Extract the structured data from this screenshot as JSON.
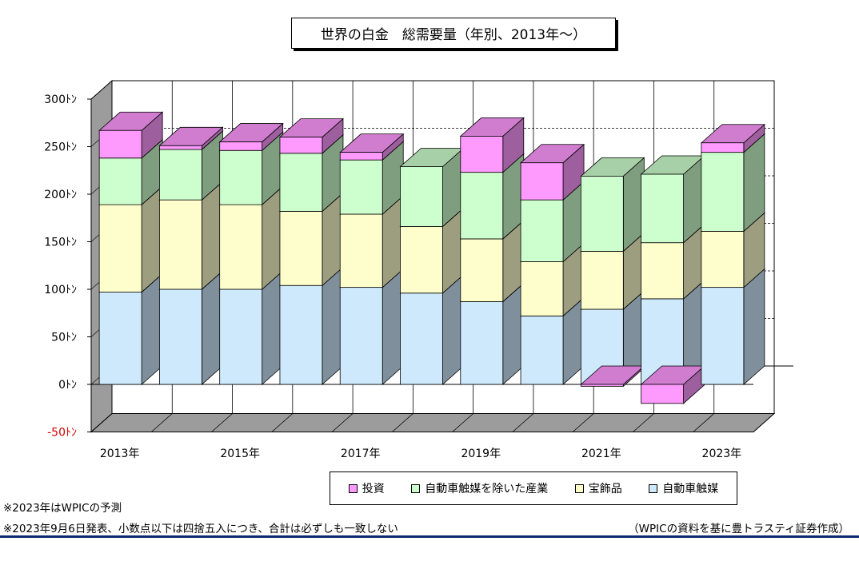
{
  "title": "世界の白金　総需要量（年別、2013年〜）",
  "chart_data": {
    "type": "bar",
    "stacked": true,
    "three_d": true,
    "title": "世界の白金　総需要量（年別、2013年〜）",
    "categories": [
      "2013年",
      "2014年",
      "2015年",
      "2016年",
      "2017年",
      "2018年",
      "2019年",
      "2020年",
      "2021年",
      "2022年",
      "2023年"
    ],
    "x_tick_labels": [
      "2013年",
      "",
      "2015年",
      "",
      "2017年",
      "",
      "2019年",
      "",
      "2021年",
      "",
      "2023年"
    ],
    "y_tick_labels": [
      {
        "value": 300,
        "label": "300ﾄﾝ"
      },
      {
        "value": 250,
        "label": "250ﾄﾝ"
      },
      {
        "value": 200,
        "label": "200ﾄﾝ"
      },
      {
        "value": 150,
        "label": "150ﾄﾝ"
      },
      {
        "value": 100,
        "label": "100ﾄﾝ"
      },
      {
        "value": 50,
        "label": "50ﾄﾝ"
      },
      {
        "value": 0,
        "label": "0ﾄﾝ"
      },
      {
        "value": -50,
        "label": "-50ﾄﾝ"
      }
    ],
    "ylim": [
      -50,
      300
    ],
    "grid": true,
    "legend_position": "bottom",
    "series": [
      {
        "name": "自動車触媒",
        "color": "#cde9fb",
        "values": [
          97,
          100,
          100,
          104,
          102,
          96,
          87,
          72,
          79,
          90,
          102
        ]
      },
      {
        "name": "宝飾品",
        "color": "#fefecd",
        "values": [
          92,
          94,
          89,
          78,
          77,
          70,
          66,
          57,
          61,
          59,
          59
        ]
      },
      {
        "name": "自動車触媒を除いた産業",
        "color": "#cdfecd",
        "values": [
          49,
          53,
          57,
          61,
          57,
          63,
          70,
          65,
          79,
          72,
          83
        ]
      },
      {
        "name": "投資",
        "color": "#fe99fe",
        "values": [
          29,
          4,
          9,
          17,
          8,
          0,
          38,
          39,
          -2,
          -20,
          10
        ]
      }
    ]
  },
  "legend": [
    {
      "label": "投資",
      "color": "#fe99fe"
    },
    {
      "label": "自動車触媒を除いた産業",
      "color": "#cdfecd"
    },
    {
      "label": "宝飾品",
      "color": "#fefecd"
    },
    {
      "label": "自動車触媒",
      "color": "#cde9fb"
    }
  ],
  "notes": [
    "※2023年はWPICの予測",
    "※2023年9月6日発表、小数点以下は四捨五入につき、合計は必ずしも一致しない"
  ],
  "credit": "（WPICの資料を基に豊トラスティ証券作成）"
}
